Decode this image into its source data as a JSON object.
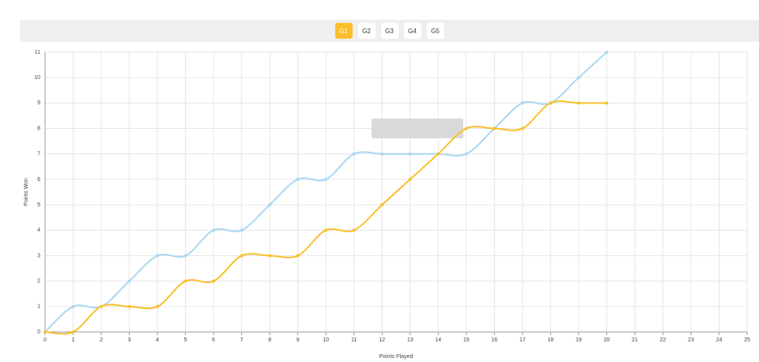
{
  "tabs": [
    "G1",
    "G2",
    "G3",
    "G4",
    "G5"
  ],
  "active_tab": 0,
  "active_color": "#fbbf2d",
  "chart_data": {
    "type": "line",
    "x_label": "Points Played",
    "y_label": "Points Won",
    "x": [
      0,
      1,
      2,
      3,
      4,
      5,
      6,
      7,
      8,
      9,
      10,
      11,
      12,
      13,
      14,
      15,
      16,
      17,
      18,
      19,
      20
    ],
    "series": [
      {
        "color": "#a9d8f0",
        "values": [
          0,
          1,
          1,
          2,
          3,
          3,
          4,
          4,
          5,
          6,
          6,
          7,
          7,
          7,
          7,
          7,
          8,
          9,
          9,
          10,
          11
        ]
      },
      {
        "color": "#fbbf2d",
        "values": [
          0,
          0,
          1,
          1,
          1,
          2,
          2,
          3,
          3,
          3,
          4,
          4,
          5,
          6,
          7,
          8,
          8,
          8,
          9,
          9,
          9
        ]
      }
    ],
    "xlim": [
      0,
      25
    ],
    "xticks": [
      0,
      1,
      2,
      3,
      4,
      5,
      6,
      7,
      8,
      9,
      10,
      11,
      12,
      13,
      14,
      15,
      16,
      17,
      18,
      19,
      20,
      21,
      22,
      23,
      24,
      25
    ],
    "ylim": [
      0,
      11
    ],
    "yticks": [
      0,
      1,
      2,
      3,
      4,
      5,
      6,
      7,
      8,
      9,
      10,
      11
    ],
    "grid": true
  }
}
